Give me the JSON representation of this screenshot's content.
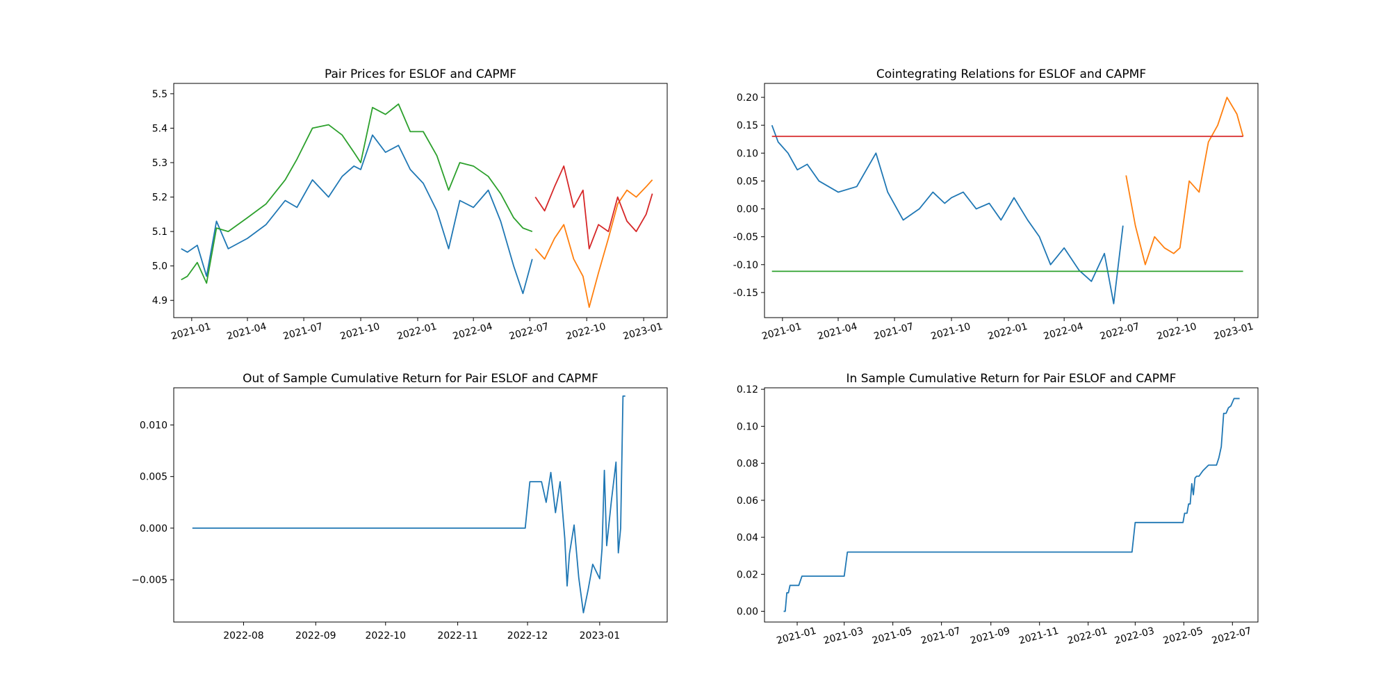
{
  "chart_data": [
    {
      "type": "line",
      "title": "Pair Prices for ESLOF and CAPMF",
      "xlabel": "",
      "ylabel": "",
      "x_is_date": true,
      "xlim": [
        "2020-12-03",
        "2023-02-08"
      ],
      "ylim": [
        4.85,
        5.53
      ],
      "yticks": [
        4.9,
        5.0,
        5.1,
        5.2,
        5.3,
        5.4,
        5.5
      ],
      "ytick_decimals": 1,
      "xticks": [
        "2021-01-01",
        "2021-04-01",
        "2021-07-01",
        "2021-10-01",
        "2022-01-01",
        "2022-04-01",
        "2022-07-01",
        "2022-10-01",
        "2023-01-01"
      ],
      "xtick_labels": [
        "2021-01",
        "2021-04",
        "2021-07",
        "2021-10",
        "2022-01",
        "2022-04",
        "2022-07",
        "2022-10",
        "2023-01"
      ],
      "xtick_rotation": -15,
      "series": [
        {
          "color": "#1f77b4",
          "x": [
            "2020-12-15",
            "2020-12-25",
            "2021-01-10",
            "2021-01-25",
            "2021-02-10",
            "2021-03-01",
            "2021-04-01",
            "2021-05-01",
            "2021-06-01",
            "2021-06-20",
            "2021-07-15",
            "2021-08-10",
            "2021-09-01",
            "2021-09-20",
            "2021-10-01",
            "2021-10-20",
            "2021-11-10",
            "2021-12-01",
            "2021-12-20",
            "2022-01-10",
            "2022-02-01",
            "2022-02-20",
            "2022-03-10",
            "2022-04-01",
            "2022-04-25",
            "2022-05-15",
            "2022-06-05",
            "2022-06-20",
            "2022-07-05"
          ],
          "y": [
            5.05,
            5.04,
            5.06,
            4.97,
            5.13,
            5.05,
            5.08,
            5.12,
            5.19,
            5.17,
            5.25,
            5.2,
            5.26,
            5.29,
            5.28,
            5.38,
            5.33,
            5.35,
            5.28,
            5.24,
            5.16,
            5.05,
            5.19,
            5.17,
            5.22,
            5.13,
            5.0,
            4.92,
            5.02
          ]
        },
        {
          "color": "#2ca02c",
          "x": [
            "2020-12-15",
            "2020-12-25",
            "2021-01-10",
            "2021-01-25",
            "2021-02-10",
            "2021-03-01",
            "2021-04-01",
            "2021-05-01",
            "2021-06-01",
            "2021-06-20",
            "2021-07-15",
            "2021-08-10",
            "2021-09-01",
            "2021-09-20",
            "2021-10-01",
            "2021-10-20",
            "2021-11-10",
            "2021-12-01",
            "2021-12-20",
            "2022-01-10",
            "2022-02-01",
            "2022-02-20",
            "2022-03-10",
            "2022-04-01",
            "2022-04-25",
            "2022-05-15",
            "2022-06-05",
            "2022-06-20",
            "2022-07-05"
          ],
          "y": [
            4.96,
            4.97,
            5.01,
            4.95,
            5.11,
            5.1,
            5.14,
            5.18,
            5.25,
            5.31,
            5.4,
            5.41,
            5.38,
            5.33,
            5.3,
            5.46,
            5.44,
            5.47,
            5.39,
            5.39,
            5.32,
            5.22,
            5.3,
            5.29,
            5.26,
            5.21,
            5.14,
            5.11,
            5.1
          ]
        },
        {
          "color": "#ff7f0e",
          "x": [
            "2022-07-10",
            "2022-07-25",
            "2022-08-10",
            "2022-08-25",
            "2022-09-10",
            "2022-09-25",
            "2022-10-05",
            "2022-10-20",
            "2022-11-05",
            "2022-11-20",
            "2022-12-05",
            "2022-12-20",
            "2023-01-05",
            "2023-01-15"
          ],
          "y": [
            5.05,
            5.02,
            5.08,
            5.12,
            5.02,
            4.97,
            4.88,
            4.98,
            5.08,
            5.18,
            5.22,
            5.2,
            5.23,
            5.25
          ]
        },
        {
          "color": "#d62728",
          "x": [
            "2022-07-10",
            "2022-07-25",
            "2022-08-10",
            "2022-08-25",
            "2022-09-10",
            "2022-09-25",
            "2022-10-05",
            "2022-10-20",
            "2022-11-05",
            "2022-11-20",
            "2022-12-05",
            "2022-12-20",
            "2023-01-05",
            "2023-01-15"
          ],
          "y": [
            5.2,
            5.16,
            5.23,
            5.29,
            5.17,
            5.22,
            5.05,
            5.12,
            5.1,
            5.2,
            5.13,
            5.1,
            5.15,
            5.21
          ]
        }
      ]
    },
    {
      "type": "line",
      "title": "Cointegrating Relations for ESLOF and CAPMF",
      "xlabel": "",
      "ylabel": "",
      "x_is_date": true,
      "xlim": [
        "2020-12-03",
        "2023-02-08"
      ],
      "ylim": [
        -0.195,
        0.225
      ],
      "yticks": [
        -0.15,
        -0.1,
        -0.05,
        0.0,
        0.05,
        0.1,
        0.15,
        0.2
      ],
      "ytick_decimals": 2,
      "xticks": [
        "2021-01-01",
        "2021-04-01",
        "2021-07-01",
        "2021-10-01",
        "2022-01-01",
        "2022-04-01",
        "2022-07-01",
        "2022-10-01",
        "2023-01-01"
      ],
      "xtick_labels": [
        "2021-01",
        "2021-04",
        "2021-07",
        "2021-10",
        "2022-01",
        "2022-04",
        "2022-07",
        "2022-10",
        "2023-01"
      ],
      "xtick_rotation": -15,
      "series": [
        {
          "color": "#1f77b4",
          "x": [
            "2020-12-15",
            "2020-12-25",
            "2021-01-10",
            "2021-01-25",
            "2021-02-10",
            "2021-03-01",
            "2021-04-01",
            "2021-05-01",
            "2021-06-01",
            "2021-06-20",
            "2021-07-15",
            "2021-08-10",
            "2021-09-01",
            "2021-09-20",
            "2021-10-01",
            "2021-10-20",
            "2021-11-10",
            "2021-12-01",
            "2021-12-20",
            "2022-01-10",
            "2022-02-01",
            "2022-02-20",
            "2022-03-10",
            "2022-04-01",
            "2022-04-25",
            "2022-05-15",
            "2022-06-05",
            "2022-06-20",
            "2022-07-05"
          ],
          "y": [
            0.15,
            0.12,
            0.1,
            0.07,
            0.08,
            0.05,
            0.03,
            0.04,
            0.1,
            0.03,
            -0.02,
            0.0,
            0.03,
            0.01,
            0.02,
            0.03,
            0.0,
            0.01,
            -0.02,
            0.02,
            -0.02,
            -0.05,
            -0.1,
            -0.07,
            -0.11,
            -0.13,
            -0.08,
            -0.17,
            -0.03
          ]
        },
        {
          "color": "#ff7f0e",
          "x": [
            "2022-07-10",
            "2022-07-25",
            "2022-08-10",
            "2022-08-25",
            "2022-09-10",
            "2022-09-25",
            "2022-10-05",
            "2022-10-20",
            "2022-11-05",
            "2022-11-20",
            "2022-12-05",
            "2022-12-20",
            "2023-01-05",
            "2023-01-15"
          ],
          "y": [
            0.06,
            -0.03,
            -0.1,
            -0.05,
            -0.07,
            -0.08,
            -0.07,
            0.05,
            0.03,
            0.12,
            0.15,
            0.2,
            0.17,
            0.13
          ]
        },
        {
          "color": "#2ca02c",
          "x": [
            "2020-12-15",
            "2023-01-15"
          ],
          "y": [
            -0.112,
            -0.112
          ]
        },
        {
          "color": "#d62728",
          "x": [
            "2020-12-15",
            "2023-01-15"
          ],
          "y": [
            0.13,
            0.13
          ]
        }
      ]
    },
    {
      "type": "line",
      "title": "Out of Sample Cumulative Return for Pair ESLOF and CAPMF",
      "xlabel": "",
      "ylabel": "",
      "x_is_date": true,
      "xlim": [
        "2022-07-02",
        "2023-01-30"
      ],
      "ylim": [
        -0.0091,
        0.0136
      ],
      "yticks": [
        -0.005,
        0.0,
        0.005,
        0.01
      ],
      "ytick_labels": [
        "−0.005",
        "0.000",
        "0.005",
        "0.010"
      ],
      "ytick_decimals": 3,
      "xticks": [
        "2022-08-01",
        "2022-09-01",
        "2022-10-01",
        "2022-11-01",
        "2022-12-01",
        "2023-01-01"
      ],
      "xtick_labels": [
        "2022-08",
        "2022-09",
        "2022-10",
        "2022-11",
        "2022-12",
        "2023-01"
      ],
      "xtick_rotation": 0,
      "series": [
        {
          "color": "#1f77b4",
          "x": [
            "2022-07-10",
            "2022-11-30",
            "2022-12-02",
            "2022-12-07",
            "2022-12-09",
            "2022-12-11",
            "2022-12-13",
            "2022-12-15",
            "2022-12-17",
            "2022-12-18",
            "2022-12-19",
            "2022-12-21",
            "2022-12-23",
            "2022-12-25",
            "2022-12-27",
            "2022-12-29",
            "2023-01-01",
            "2023-01-02",
            "2023-01-03",
            "2023-01-04",
            "2023-01-06",
            "2023-01-08",
            "2023-01-09",
            "2023-01-10",
            "2023-01-11",
            "2023-01-12"
          ],
          "y": [
            0.0,
            0.0,
            0.0045,
            0.0045,
            0.0025,
            0.0054,
            0.0015,
            0.0045,
            -0.001,
            -0.0056,
            -0.0025,
            0.0003,
            -0.0048,
            -0.0082,
            -0.006,
            -0.0035,
            -0.0049,
            -0.002,
            0.0056,
            -0.0017,
            0.0026,
            0.0064,
            -0.0024,
            0.0,
            0.0128,
            0.0128
          ]
        }
      ]
    },
    {
      "type": "line",
      "title": "In Sample Cumulative Return for Pair ESLOF and CAPMF",
      "xlabel": "",
      "ylabel": "",
      "x_is_date": true,
      "xlim": [
        "2020-11-21",
        "2022-08-02"
      ],
      "ylim": [
        -0.0058,
        0.1208
      ],
      "yticks": [
        0.0,
        0.02,
        0.04,
        0.06,
        0.08,
        0.1,
        0.12
      ],
      "ytick_decimals": 2,
      "xticks": [
        "2021-01-01",
        "2021-03-01",
        "2021-05-01",
        "2021-07-01",
        "2021-09-01",
        "2021-11-01",
        "2022-01-01",
        "2022-03-01",
        "2022-05-01",
        "2022-07-01"
      ],
      "xtick_labels": [
        "2021-01",
        "2021-03",
        "2021-05",
        "2021-07",
        "2021-09",
        "2021-11",
        "2022-01",
        "2022-03",
        "2022-05",
        "2022-07"
      ],
      "xtick_rotation": -15,
      "series": [
        {
          "color": "#1f77b4",
          "x": [
            "2020-12-15",
            "2020-12-17",
            "2020-12-19",
            "2020-12-21",
            "2020-12-23",
            "2020-12-28",
            "2021-01-03",
            "2021-01-07",
            "2021-01-09",
            "2021-01-15",
            "2021-02-01",
            "2021-03-01",
            "2021-03-05",
            "2021-03-07",
            "2021-06-01",
            "2021-12-01",
            "2022-02-25",
            "2022-03-01",
            "2022-03-05",
            "2022-04-01",
            "2022-04-30",
            "2022-05-02",
            "2022-05-05",
            "2022-05-07",
            "2022-05-09",
            "2022-05-11",
            "2022-05-13",
            "2022-05-15",
            "2022-05-17",
            "2022-05-20",
            "2022-05-25",
            "2022-06-01",
            "2022-06-05",
            "2022-06-07",
            "2022-06-09",
            "2022-06-11",
            "2022-06-14",
            "2022-06-17",
            "2022-06-20",
            "2022-06-23",
            "2022-06-26",
            "2022-06-29",
            "2022-07-03",
            "2022-07-07",
            "2022-07-10"
          ],
          "y": [
            0.0,
            0.0,
            0.01,
            0.01,
            0.014,
            0.014,
            0.014,
            0.019,
            0.019,
            0.019,
            0.019,
            0.019,
            0.032,
            0.032,
            0.032,
            0.032,
            0.032,
            0.048,
            0.048,
            0.048,
            0.048,
            0.053,
            0.053,
            0.058,
            0.058,
            0.069,
            0.063,
            0.072,
            0.073,
            0.073,
            0.076,
            0.079,
            0.079,
            0.079,
            0.079,
            0.079,
            0.083,
            0.089,
            0.107,
            0.107,
            0.11,
            0.111,
            0.115,
            0.115,
            0.115
          ]
        }
      ]
    }
  ]
}
